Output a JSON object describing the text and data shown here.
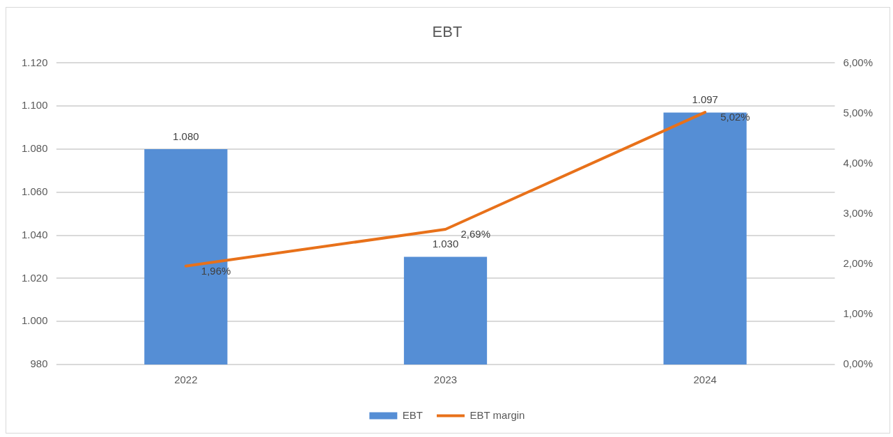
{
  "chart_data": {
    "type": "bar",
    "title": "EBT",
    "categories": [
      "2022",
      "2023",
      "2024"
    ],
    "series": [
      {
        "name": "EBT",
        "color": "#558ed5",
        "values": [
          1080,
          1030,
          1097
        ],
        "value_labels": [
          "1.080",
          "1.030",
          "1.097"
        ]
      },
      {
        "name": "EBT margin",
        "type": "line",
        "axis": "y2",
        "color": "#e8711a",
        "values": [
          1.96,
          2.69,
          5.02
        ],
        "value_labels": [
          "1,96%",
          "2,69%",
          "5,02%"
        ]
      }
    ],
    "ylim": [
      980,
      1120
    ],
    "yticks": [
      {
        "value": 980,
        "label": "980"
      },
      {
        "value": 1000,
        "label": "1.000"
      },
      {
        "value": 1020,
        "label": "1.020"
      },
      {
        "value": 1040,
        "label": "1.040"
      },
      {
        "value": 1060,
        "label": "1.060"
      },
      {
        "value": 1080,
        "label": "1.080"
      },
      {
        "value": 1100,
        "label": "1.100"
      },
      {
        "value": 1120,
        "label": "1.120"
      }
    ],
    "y2lim": [
      0,
      6
    ],
    "y2ticks": [
      {
        "value": 0,
        "label": "0,00%"
      },
      {
        "value": 1,
        "label": "1,00%"
      },
      {
        "value": 2,
        "label": "2,00%"
      },
      {
        "value": 3,
        "label": "3,00%"
      },
      {
        "value": 4,
        "label": "4,00%"
      },
      {
        "value": 5,
        "label": "5,00%"
      },
      {
        "value": 6,
        "label": "6,00%"
      }
    ],
    "grid": "y",
    "legend": "bottom",
    "marker": "none",
    "line_style": "solid"
  }
}
